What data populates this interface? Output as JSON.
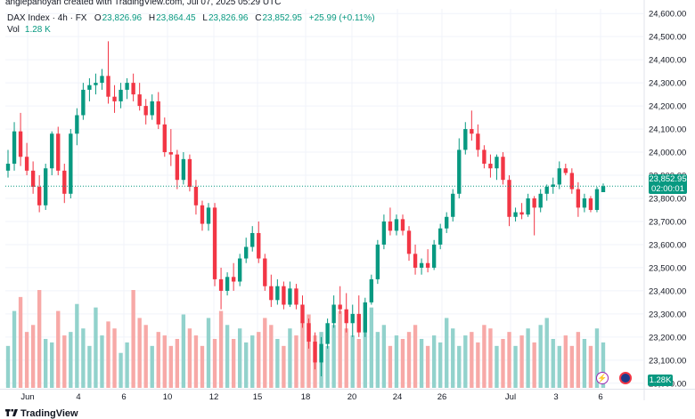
{
  "header": {
    "author_line": "anglepanoyan created with TradingView.com, Jul 07, 2025 05:29 UTC"
  },
  "legend": {
    "symbol": "DAX Index · 4h · FX",
    "open_label": "O",
    "open": "23,826.96",
    "high_label": "H",
    "high": "23,864.45",
    "low_label": "L",
    "low": "23,826.96",
    "close_label": "C",
    "close": "23,852.95",
    "change": "+25.99 (+0.11%)",
    "vol_label": "Vol",
    "vol_value": "1.28 K"
  },
  "price_scale": {
    "ticks": [
      "24,600.00",
      "24,500.00",
      "24,400.00",
      "24,300.00",
      "24,200.00",
      "24,100.00",
      "24,000.00",
      "23,900.00",
      "23,800.00",
      "23,700.00",
      "23,600.00",
      "23,500.00",
      "23,400.00",
      "23,300.00",
      "23,200.00",
      "23,100.00",
      "23,000.00"
    ],
    "current_price": "23,852.95",
    "countdown": "02:00:01",
    "volume_tag": "1.28K"
  },
  "time_scale": {
    "ticks": [
      "Jun",
      "4",
      "6",
      "10",
      "12",
      "15",
      "18",
      "20",
      "24",
      "26",
      "Jul",
      "3",
      "6"
    ]
  },
  "colors": {
    "up": "#089981",
    "down": "#f23645",
    "up_volume": "#92d2cc",
    "down_volume": "#f7a9a7",
    "grid": "#f0f3fa",
    "price_line": "#089981"
  },
  "icons": {
    "bolt": "lightning-bolt-icon",
    "event": "economic-event-icon",
    "logo": "tradingview-logo-icon"
  },
  "footer": {
    "brand": "TradingView"
  },
  "chart_data": {
    "type": "candlestick",
    "interval": "4h",
    "ylim": [
      22980,
      24620
    ],
    "current_price": 23852.95,
    "candles": [
      {
        "o": 23920,
        "h": 24010,
        "l": 23890,
        "c": 23950
      },
      {
        "o": 23950,
        "h": 24130,
        "l": 23920,
        "c": 24090
      },
      {
        "o": 24090,
        "h": 24170,
        "l": 23940,
        "c": 23980
      },
      {
        "o": 23980,
        "h": 24040,
        "l": 23900,
        "c": 23920
      },
      {
        "o": 23920,
        "h": 23960,
        "l": 23820,
        "c": 23850
      },
      {
        "o": 23850,
        "h": 23900,
        "l": 23740,
        "c": 23770
      },
      {
        "o": 23770,
        "h": 23950,
        "l": 23750,
        "c": 23930
      },
      {
        "o": 23930,
        "h": 24090,
        "l": 23900,
        "c": 24080
      },
      {
        "o": 24080,
        "h": 24110,
        "l": 23900,
        "c": 23920
      },
      {
        "o": 23920,
        "h": 23950,
        "l": 23780,
        "c": 23820
      },
      {
        "o": 23820,
        "h": 24100,
        "l": 23800,
        "c": 24080
      },
      {
        "o": 24080,
        "h": 24190,
        "l": 24030,
        "c": 24160
      },
      {
        "o": 24160,
        "h": 24300,
        "l": 24140,
        "c": 24270
      },
      {
        "o": 24270,
        "h": 24320,
        "l": 24220,
        "c": 24290
      },
      {
        "o": 24290,
        "h": 24340,
        "l": 24250,
        "c": 24300
      },
      {
        "o": 24300,
        "h": 24360,
        "l": 24270,
        "c": 24330
      },
      {
        "o": 24330,
        "h": 24480,
        "l": 24210,
        "c": 24240
      },
      {
        "o": 24240,
        "h": 24290,
        "l": 24170,
        "c": 24220
      },
      {
        "o": 24220,
        "h": 24300,
        "l": 24190,
        "c": 24270
      },
      {
        "o": 24270,
        "h": 24320,
        "l": 24230,
        "c": 24300
      },
      {
        "o": 24300,
        "h": 24340,
        "l": 24220,
        "c": 24250
      },
      {
        "o": 24250,
        "h": 24300,
        "l": 24180,
        "c": 24200
      },
      {
        "o": 24200,
        "h": 24230,
        "l": 24120,
        "c": 24160
      },
      {
        "o": 24160,
        "h": 24250,
        "l": 24140,
        "c": 24220
      },
      {
        "o": 24220,
        "h": 24260,
        "l": 24100,
        "c": 24120
      },
      {
        "o": 24120,
        "h": 24150,
        "l": 23980,
        "c": 24000
      },
      {
        "o": 24000,
        "h": 24100,
        "l": 23940,
        "c": 23990
      },
      {
        "o": 23990,
        "h": 24010,
        "l": 23840,
        "c": 23880
      },
      {
        "o": 23880,
        "h": 24000,
        "l": 23860,
        "c": 23970
      },
      {
        "o": 23970,
        "h": 23990,
        "l": 23830,
        "c": 23850
      },
      {
        "o": 23850,
        "h": 23880,
        "l": 23730,
        "c": 23770
      },
      {
        "o": 23770,
        "h": 23790,
        "l": 23660,
        "c": 23690
      },
      {
        "o": 23690,
        "h": 23780,
        "l": 23660,
        "c": 23760
      },
      {
        "o": 23760,
        "h": 23780,
        "l": 23420,
        "c": 23450
      },
      {
        "o": 23450,
        "h": 23500,
        "l": 23320,
        "c": 23400
      },
      {
        "o": 23400,
        "h": 23480,
        "l": 23380,
        "c": 23460
      },
      {
        "o": 23460,
        "h": 23520,
        "l": 23400,
        "c": 23440
      },
      {
        "o": 23440,
        "h": 23560,
        "l": 23420,
        "c": 23540
      },
      {
        "o": 23540,
        "h": 23630,
        "l": 23520,
        "c": 23590
      },
      {
        "o": 23590,
        "h": 23680,
        "l": 23570,
        "c": 23650
      },
      {
        "o": 23650,
        "h": 23700,
        "l": 23520,
        "c": 23540
      },
      {
        "o": 23540,
        "h": 23560,
        "l": 23400,
        "c": 23420
      },
      {
        "o": 23420,
        "h": 23470,
        "l": 23330,
        "c": 23360
      },
      {
        "o": 23360,
        "h": 23450,
        "l": 23340,
        "c": 23420
      },
      {
        "o": 23420,
        "h": 23440,
        "l": 23320,
        "c": 23340
      },
      {
        "o": 23340,
        "h": 23440,
        "l": 23330,
        "c": 23410
      },
      {
        "o": 23410,
        "h": 23430,
        "l": 23320,
        "c": 23340
      },
      {
        "o": 23340,
        "h": 23380,
        "l": 23240,
        "c": 23260
      },
      {
        "o": 23260,
        "h": 23280,
        "l": 23150,
        "c": 23180
      },
      {
        "o": 23180,
        "h": 23220,
        "l": 23060,
        "c": 23090
      },
      {
        "o": 23090,
        "h": 23200,
        "l": 23030,
        "c": 23170
      },
      {
        "o": 23170,
        "h": 23280,
        "l": 23150,
        "c": 23260
      },
      {
        "o": 23260,
        "h": 23380,
        "l": 23240,
        "c": 23340
      },
      {
        "o": 23340,
        "h": 23420,
        "l": 23300,
        "c": 23320
      },
      {
        "o": 23320,
        "h": 23390,
        "l": 23220,
        "c": 23260
      },
      {
        "o": 23260,
        "h": 23340,
        "l": 23200,
        "c": 23300
      },
      {
        "o": 23300,
        "h": 23380,
        "l": 23200,
        "c": 23220
      },
      {
        "o": 23220,
        "h": 23370,
        "l": 23200,
        "c": 23350
      },
      {
        "o": 23350,
        "h": 23470,
        "l": 23340,
        "c": 23450
      },
      {
        "o": 23450,
        "h": 23620,
        "l": 23430,
        "c": 23600
      },
      {
        "o": 23600,
        "h": 23730,
        "l": 23580,
        "c": 23700
      },
      {
        "o": 23700,
        "h": 23760,
        "l": 23640,
        "c": 23660
      },
      {
        "o": 23660,
        "h": 23730,
        "l": 23640,
        "c": 23710
      },
      {
        "o": 23710,
        "h": 23730,
        "l": 23640,
        "c": 23660
      },
      {
        "o": 23660,
        "h": 23680,
        "l": 23530,
        "c": 23560
      },
      {
        "o": 23560,
        "h": 23600,
        "l": 23470,
        "c": 23500
      },
      {
        "o": 23500,
        "h": 23540,
        "l": 23470,
        "c": 23520
      },
      {
        "o": 23520,
        "h": 23580,
        "l": 23480,
        "c": 23500
      },
      {
        "o": 23500,
        "h": 23620,
        "l": 23490,
        "c": 23600
      },
      {
        "o": 23600,
        "h": 23690,
        "l": 23580,
        "c": 23670
      },
      {
        "o": 23670,
        "h": 23740,
        "l": 23650,
        "c": 23720
      },
      {
        "o": 23720,
        "h": 23840,
        "l": 23700,
        "c": 23820
      },
      {
        "o": 23820,
        "h": 24060,
        "l": 23800,
        "c": 24010
      },
      {
        "o": 24010,
        "h": 24130,
        "l": 23990,
        "c": 24100
      },
      {
        "o": 24100,
        "h": 24180,
        "l": 24050,
        "c": 24080
      },
      {
        "o": 24080,
        "h": 24120,
        "l": 23980,
        "c": 24010
      },
      {
        "o": 24010,
        "h": 24030,
        "l": 23930,
        "c": 23950
      },
      {
        "o": 23950,
        "h": 23990,
        "l": 23890,
        "c": 23930
      },
      {
        "o": 23930,
        "h": 23990,
        "l": 23880,
        "c": 23980
      },
      {
        "o": 23980,
        "h": 24000,
        "l": 23860,
        "c": 23880
      },
      {
        "o": 23880,
        "h": 23900,
        "l": 23680,
        "c": 23720
      },
      {
        "o": 23720,
        "h": 23760,
        "l": 23700,
        "c": 23740
      },
      {
        "o": 23740,
        "h": 23780,
        "l": 23710,
        "c": 23730
      },
      {
        "o": 23730,
        "h": 23820,
        "l": 23720,
        "c": 23800
      },
      {
        "o": 23800,
        "h": 23810,
        "l": 23640,
        "c": 23760
      },
      {
        "o": 23760,
        "h": 23840,
        "l": 23740,
        "c": 23820
      },
      {
        "o": 23820,
        "h": 23860,
        "l": 23790,
        "c": 23850
      },
      {
        "o": 23850,
        "h": 23890,
        "l": 23820,
        "c": 23860
      },
      {
        "o": 23860,
        "h": 23960,
        "l": 23840,
        "c": 23930
      },
      {
        "o": 23930,
        "h": 23950,
        "l": 23900,
        "c": 23910
      },
      {
        "o": 23910,
        "h": 23930,
        "l": 23820,
        "c": 23840
      },
      {
        "o": 23840,
        "h": 23870,
        "l": 23720,
        "c": 23760
      },
      {
        "o": 23760,
        "h": 23820,
        "l": 23740,
        "c": 23800
      },
      {
        "o": 23800,
        "h": 23810,
        "l": 23740,
        "c": 23750
      },
      {
        "o": 23750,
        "h": 23850,
        "l": 23740,
        "c": 23840
      },
      {
        "o": 23826.96,
        "h": 23864.45,
        "l": 23826.96,
        "c": 23852.95
      }
    ],
    "volumes": [
      12,
      22,
      26,
      16,
      18,
      28,
      14,
      13,
      22,
      15,
      16,
      24,
      17,
      12,
      23,
      15,
      19,
      17,
      10,
      13,
      28,
      20,
      18,
      12,
      16,
      15,
      12,
      14,
      21,
      17,
      15,
      12,
      20,
      14,
      22,
      18,
      14,
      17,
      13,
      15,
      16,
      20,
      18,
      14,
      12,
      17,
      15,
      19,
      21,
      15,
      16,
      12,
      18,
      22,
      17,
      15,
      14,
      20,
      23,
      16,
      18,
      12,
      15,
      14,
      16,
      18,
      14,
      12,
      15,
      13,
      20,
      17,
      12,
      15,
      16,
      13,
      18,
      17,
      12,
      14,
      16,
      12,
      15,
      17,
      13,
      18,
      20,
      14,
      12,
      15,
      12,
      16,
      14,
      12,
      17,
      13
    ]
  }
}
